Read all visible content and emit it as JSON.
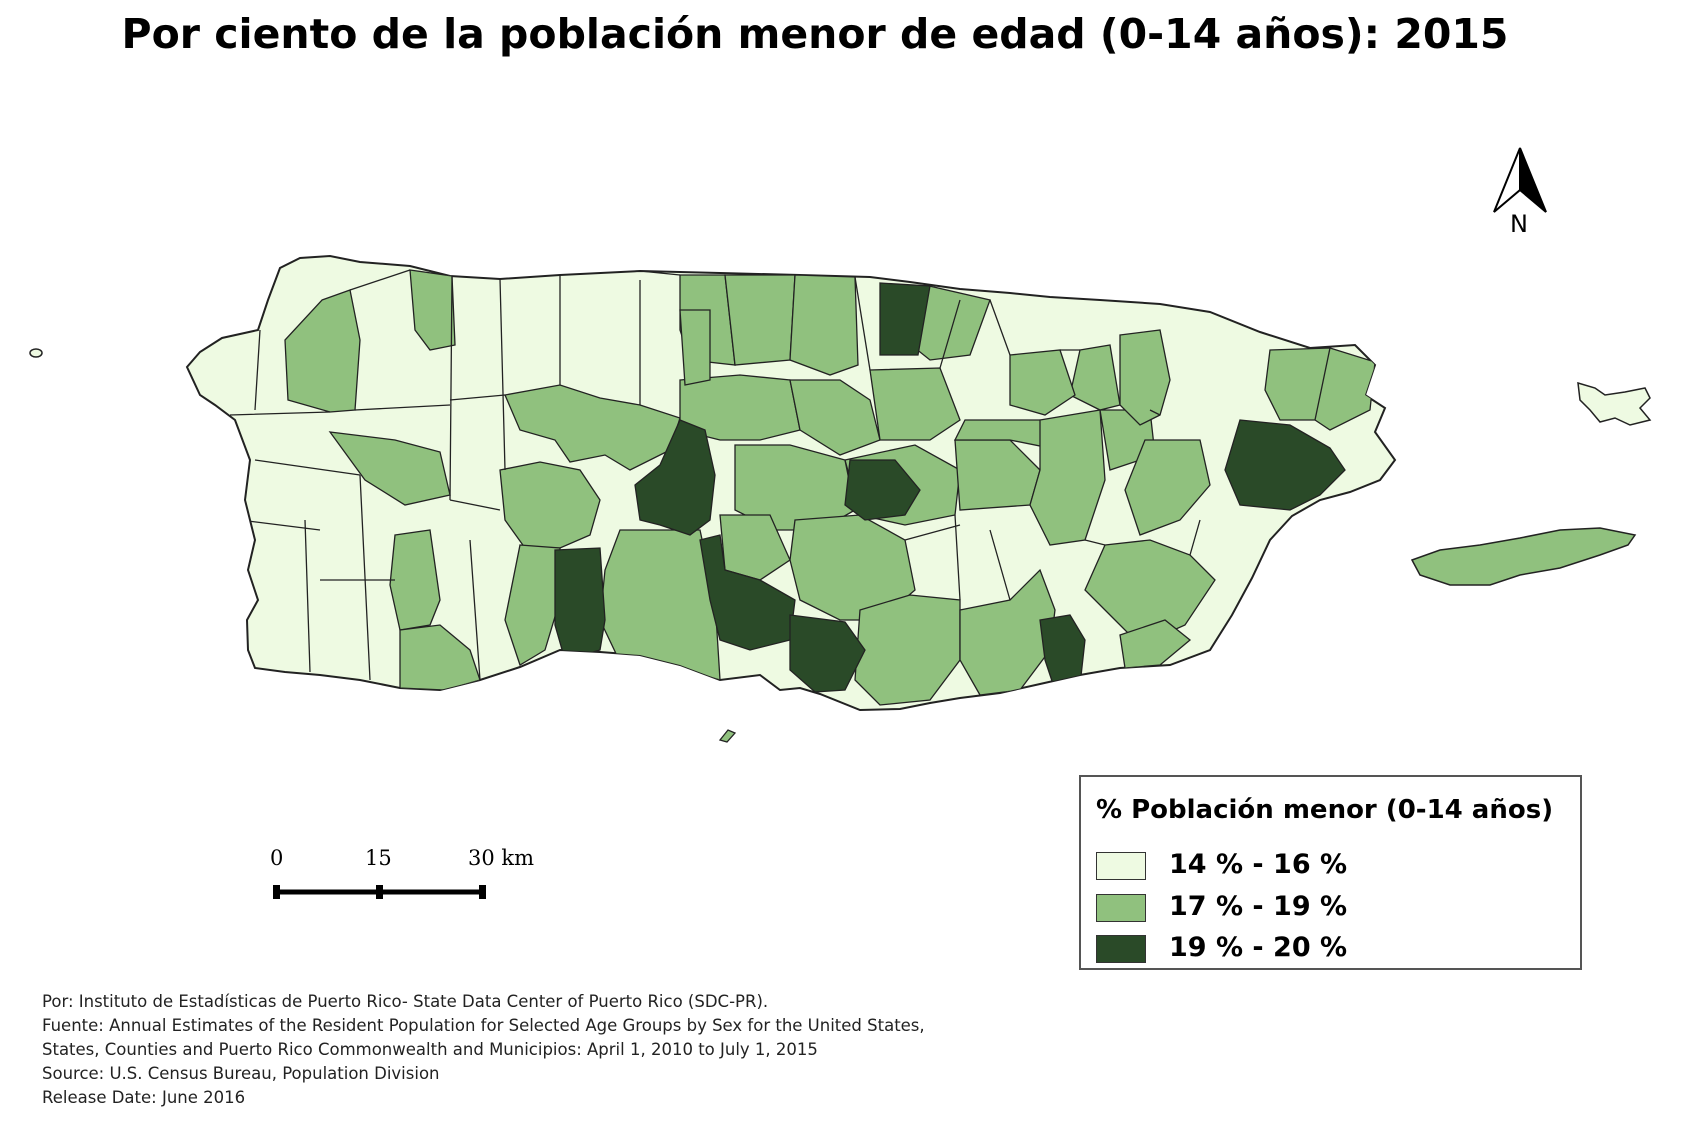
{
  "title": "Por ciento de la población menor de edad (0-14 años): 2015",
  "colors": {
    "class_low": "#eefae2",
    "class_mid": "#90c17e",
    "class_high": "#2a4a28",
    "outline": "#222222"
  },
  "legend": {
    "title": "% Población menor (0-14 años)",
    "items": [
      {
        "label": "14 % - 16 %",
        "color": "#eefae2"
      },
      {
        "label": "17 % - 19 %",
        "color": "#90c17e"
      },
      {
        "label": "19 % - 20 %",
        "color": "#2a4a28"
      }
    ]
  },
  "scale_bar": {
    "labels": [
      "0",
      "15",
      "30 km"
    ]
  },
  "north_arrow": {
    "label": "N",
    "icon": "north-arrow-icon"
  },
  "credits": [
    "Por: Instituto de Estadísticas de Puerto Rico- State Data Center of Puerto Rico (SDC-PR).",
    "Fuente: Annual Estimates of the Resident Population for Selected Age Groups by Sex for the United States,",
    "States, Counties and Puerto Rico Commonwealth and Municipios: April 1, 2010 to July 1, 2015",
    "Source: U.S. Census Bureau, Population Division",
    "Release Date: June 2016"
  ]
}
